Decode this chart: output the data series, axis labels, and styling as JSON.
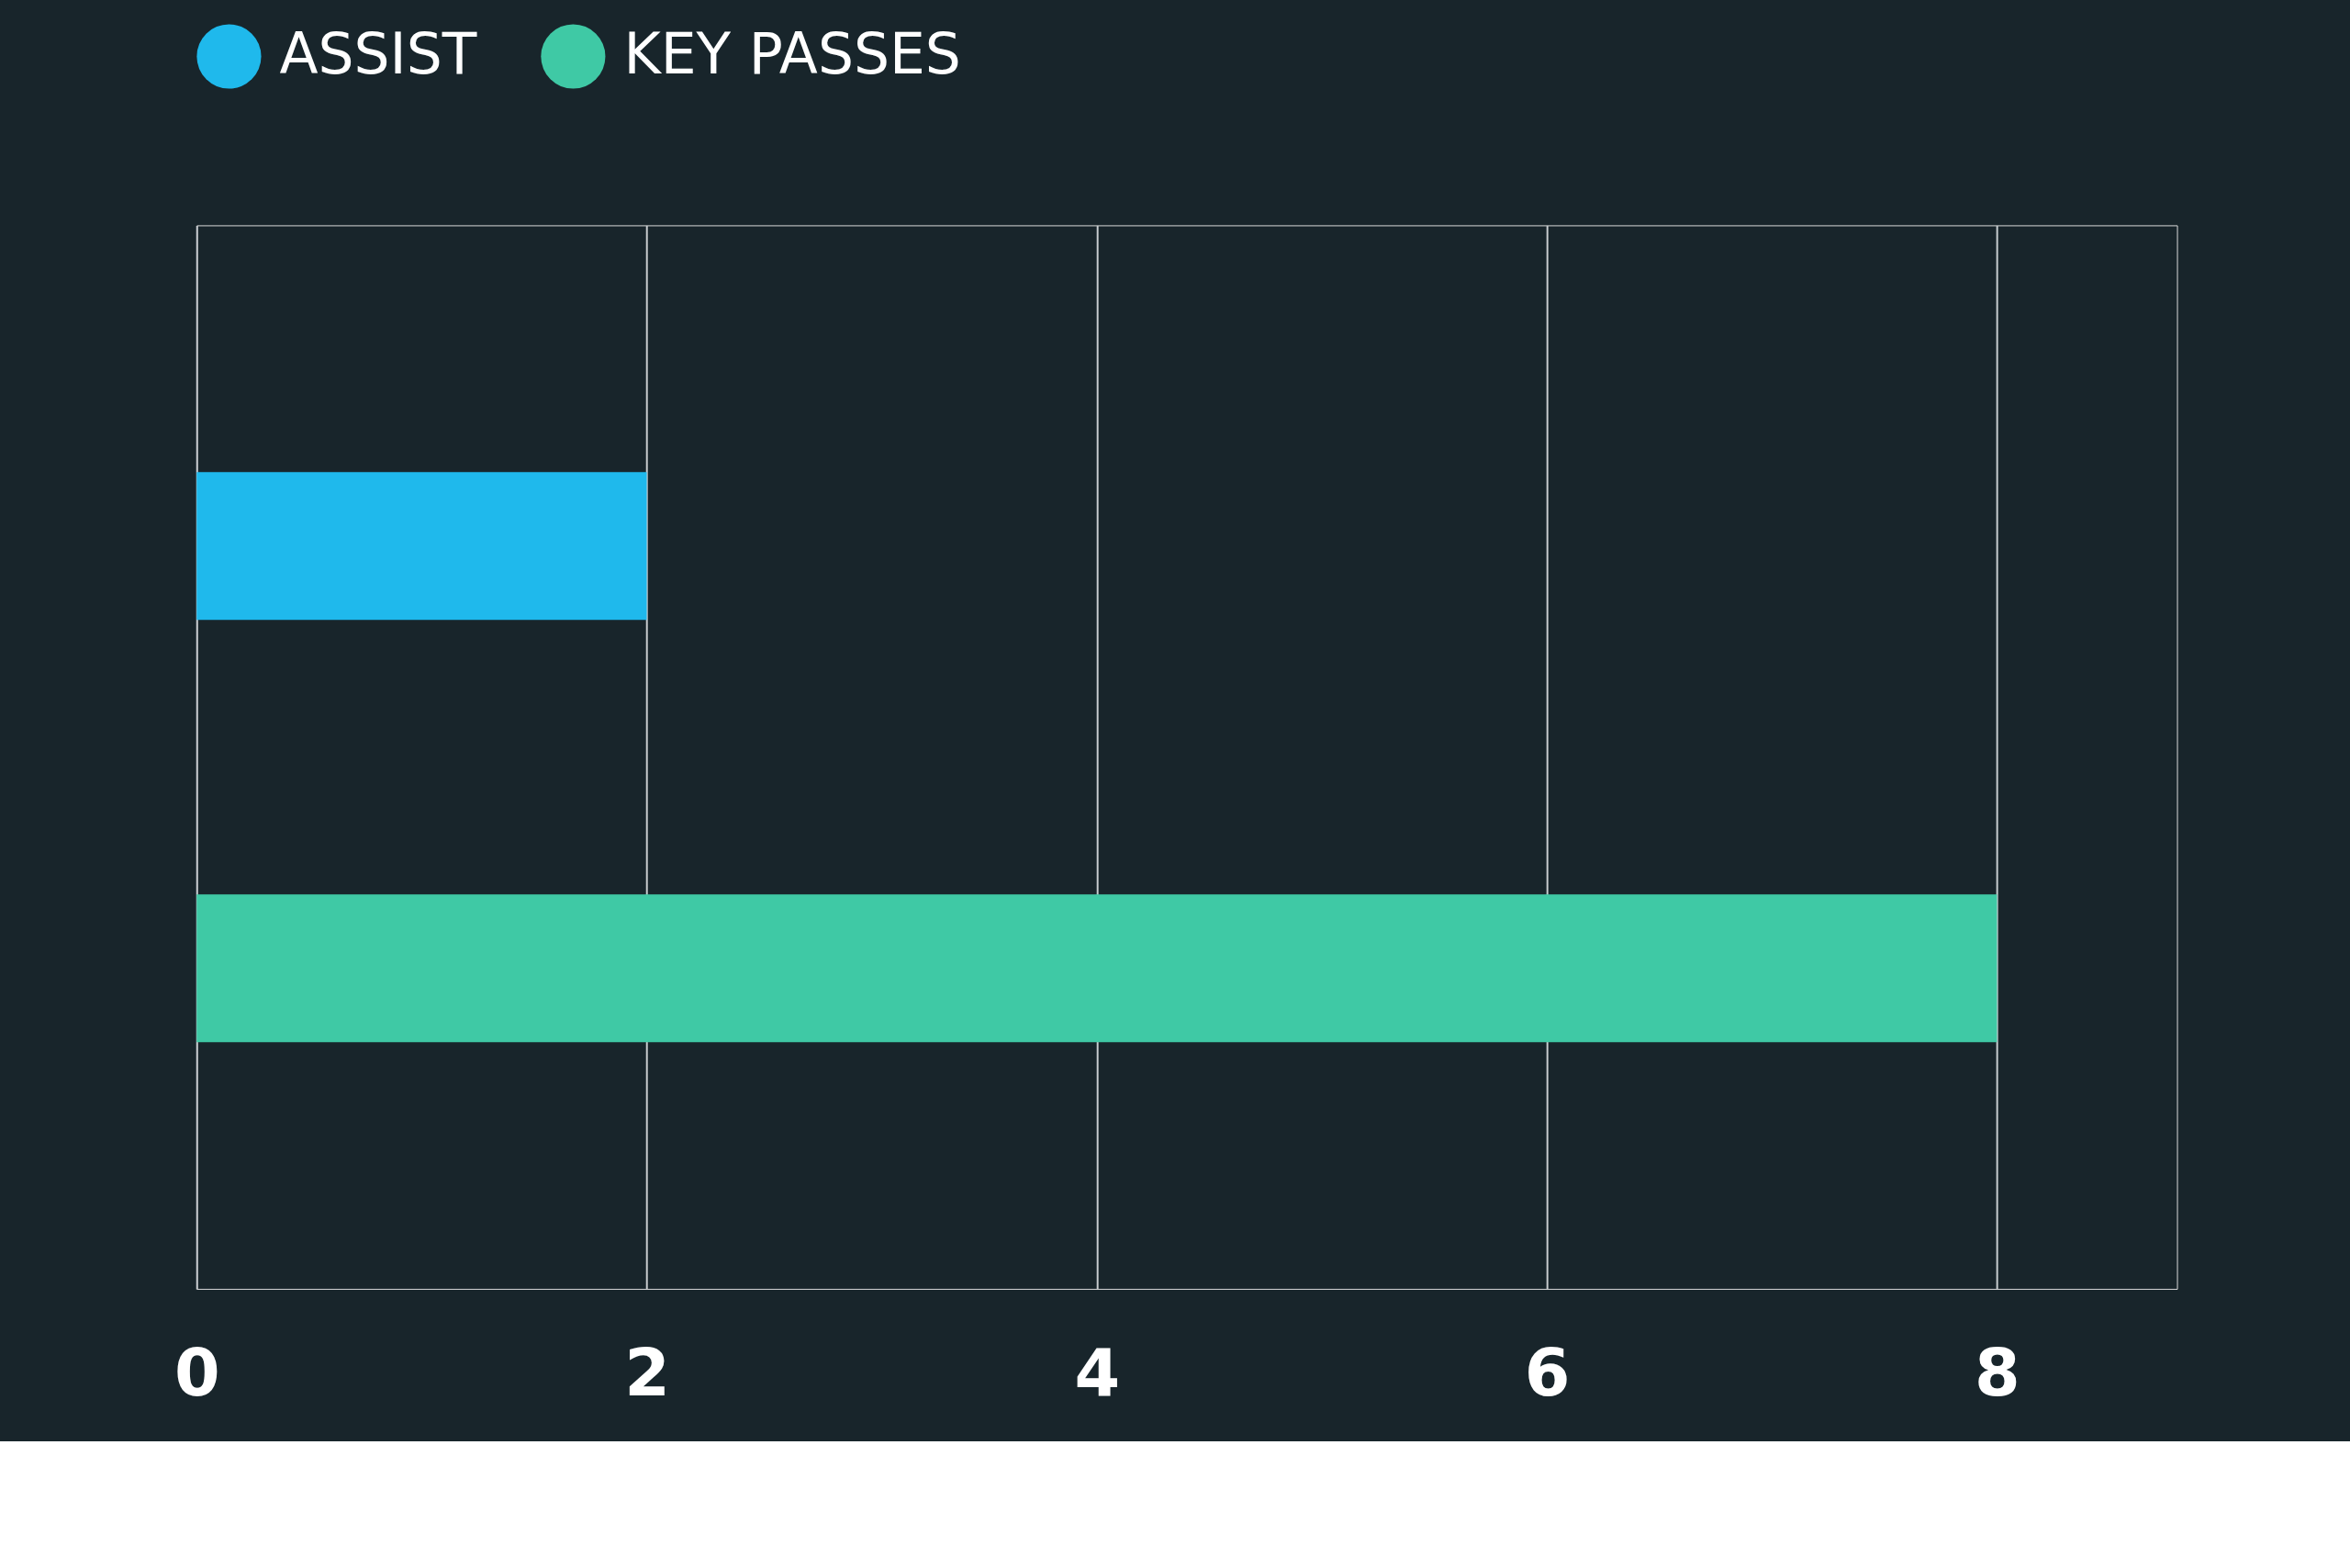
{
  "chart_data": {
    "type": "bar",
    "orientation": "horizontal",
    "categories": [
      null
    ],
    "series": [
      {
        "name": "ASSIST",
        "color": "#1fb9ec",
        "values": [
          2
        ]
      },
      {
        "name": "KEY PASSES",
        "color": "#3fc9a5",
        "values": [
          8
        ]
      }
    ],
    "xlim": [
      0,
      8.8
    ],
    "xticks": [
      0,
      2,
      4,
      6,
      8
    ],
    "grid": "x",
    "legend": "top left",
    "tick_labels": "x"
  }
}
